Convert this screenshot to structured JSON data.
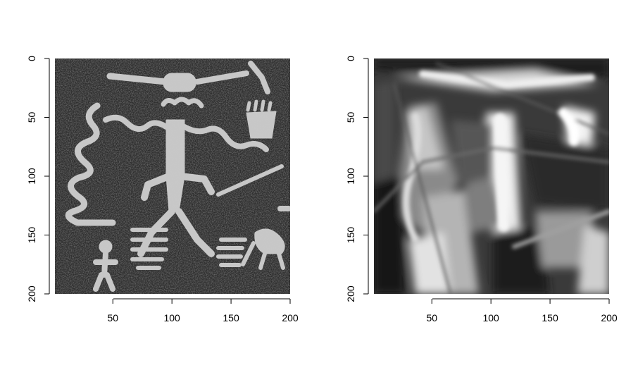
{
  "chart_data": [
    {
      "type": "heatmap",
      "title": "",
      "xlabel": "",
      "ylabel": "",
      "xlim": [
        1,
        200
      ],
      "ylim": [
        0,
        200
      ],
      "y_reversed": true,
      "colormap": "grayscale",
      "xticks": [
        {
          "value": 50,
          "label": "50"
        },
        {
          "value": 100,
          "label": "100"
        },
        {
          "value": 150,
          "label": "150"
        },
        {
          "value": 200,
          "label": "200"
        }
      ],
      "yticks": [
        {
          "value": 0,
          "label": "0"
        },
        {
          "value": 50,
          "label": "50"
        },
        {
          "value": 100,
          "label": "100"
        },
        {
          "value": 150,
          "label": "150"
        },
        {
          "value": 200,
          "label": "200"
        }
      ]
    },
    {
      "type": "heatmap",
      "title": "",
      "xlabel": "",
      "ylabel": "",
      "xlim": [
        1,
        200
      ],
      "ylim": [
        0,
        200
      ],
      "y_reversed": true,
      "colormap": "grayscale",
      "xticks": [
        {
          "value": 50,
          "label": "50"
        },
        {
          "value": 100,
          "label": "100"
        },
        {
          "value": 150,
          "label": "150"
        },
        {
          "value": 200,
          "label": "200"
        }
      ],
      "yticks": [
        {
          "value": 0,
          "label": "0"
        },
        {
          "value": 50,
          "label": "50"
        },
        {
          "value": 100,
          "label": "100"
        },
        {
          "value": 150,
          "label": "150"
        },
        {
          "value": 200,
          "label": "200"
        }
      ]
    }
  ]
}
